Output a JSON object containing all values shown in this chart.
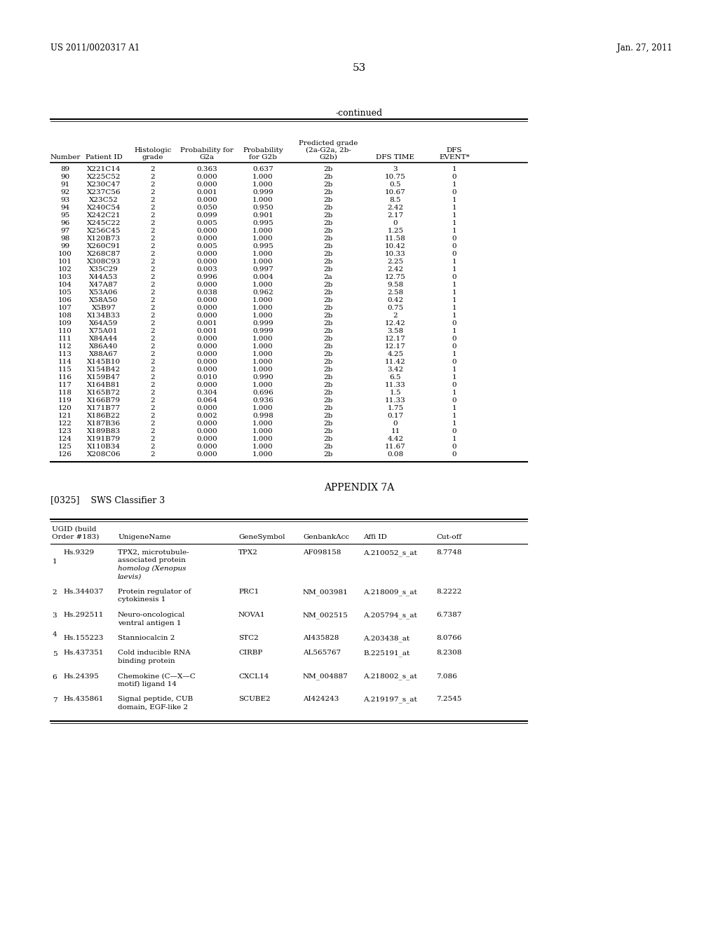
{
  "page_left_text": "US 2011/0020317 A1",
  "page_right_text": "Jan. 27, 2011",
  "page_number": "53",
  "continued_label": "-continued",
  "table1_data": [
    [
      "89",
      "X221C14",
      "2",
      "0.363",
      "0.637",
      "2b",
      "3",
      "1"
    ],
    [
      "90",
      "X225C52",
      "2",
      "0.000",
      "1.000",
      "2b",
      "10.75",
      "0"
    ],
    [
      "91",
      "X230C47",
      "2",
      "0.000",
      "1.000",
      "2b",
      "0.5",
      "1"
    ],
    [
      "92",
      "X237C56",
      "2",
      "0.001",
      "0.999",
      "2b",
      "10.67",
      "0"
    ],
    [
      "93",
      "X23C52",
      "2",
      "0.000",
      "1.000",
      "2b",
      "8.5",
      "1"
    ],
    [
      "94",
      "X240C54",
      "2",
      "0.050",
      "0.950",
      "2b",
      "2.42",
      "1"
    ],
    [
      "95",
      "X242C21",
      "2",
      "0.099",
      "0.901",
      "2b",
      "2.17",
      "1"
    ],
    [
      "96",
      "X245C22",
      "2",
      "0.005",
      "0.995",
      "2b",
      "0",
      "1"
    ],
    [
      "97",
      "X256C45",
      "2",
      "0.000",
      "1.000",
      "2b",
      "1.25",
      "1"
    ],
    [
      "98",
      "X120B73",
      "2",
      "0.000",
      "1.000",
      "2b",
      "11.58",
      "0"
    ],
    [
      "99",
      "X260C91",
      "2",
      "0.005",
      "0.995",
      "2b",
      "10.42",
      "0"
    ],
    [
      "100",
      "X268C87",
      "2",
      "0.000",
      "1.000",
      "2b",
      "10.33",
      "0"
    ],
    [
      "101",
      "X308C93",
      "2",
      "0.000",
      "1.000",
      "2b",
      "2.25",
      "1"
    ],
    [
      "102",
      "X35C29",
      "2",
      "0.003",
      "0.997",
      "2b",
      "2.42",
      "1"
    ],
    [
      "103",
      "X44A53",
      "2",
      "0.996",
      "0.004",
      "2a",
      "12.75",
      "0"
    ],
    [
      "104",
      "X47A87",
      "2",
      "0.000",
      "1.000",
      "2b",
      "9.58",
      "1"
    ],
    [
      "105",
      "X53A06",
      "2",
      "0.038",
      "0.962",
      "2b",
      "2.58",
      "1"
    ],
    [
      "106",
      "X58A50",
      "2",
      "0.000",
      "1.000",
      "2b",
      "0.42",
      "1"
    ],
    [
      "107",
      "X5B97",
      "2",
      "0.000",
      "1.000",
      "2b",
      "0.75",
      "1"
    ],
    [
      "108",
      "X134B33",
      "2",
      "0.000",
      "1.000",
      "2b",
      "2",
      "1"
    ],
    [
      "109",
      "X64A59",
      "2",
      "0.001",
      "0.999",
      "2b",
      "12.42",
      "0"
    ],
    [
      "110",
      "X75A01",
      "2",
      "0.001",
      "0.999",
      "2b",
      "3.58",
      "1"
    ],
    [
      "111",
      "X84A44",
      "2",
      "0.000",
      "1.000",
      "2b",
      "12.17",
      "0"
    ],
    [
      "112",
      "X86A40",
      "2",
      "0.000",
      "1.000",
      "2b",
      "12.17",
      "0"
    ],
    [
      "113",
      "X88A67",
      "2",
      "0.000",
      "1.000",
      "2b",
      "4.25",
      "1"
    ],
    [
      "114",
      "X145B10",
      "2",
      "0.000",
      "1.000",
      "2b",
      "11.42",
      "0"
    ],
    [
      "115",
      "X154B42",
      "2",
      "0.000",
      "1.000",
      "2b",
      "3.42",
      "1"
    ],
    [
      "116",
      "X159B47",
      "2",
      "0.010",
      "0.990",
      "2b",
      "6.5",
      "1"
    ],
    [
      "117",
      "X164B81",
      "2",
      "0.000",
      "1.000",
      "2b",
      "11.33",
      "0"
    ],
    [
      "118",
      "X165B72",
      "2",
      "0.304",
      "0.696",
      "2b",
      "1.5",
      "1"
    ],
    [
      "119",
      "X166B79",
      "2",
      "0.064",
      "0.936",
      "2b",
      "11.33",
      "0"
    ],
    [
      "120",
      "X171B77",
      "2",
      "0.000",
      "1.000",
      "2b",
      "1.75",
      "1"
    ],
    [
      "121",
      "X186B22",
      "2",
      "0.002",
      "0.998",
      "2b",
      "0.17",
      "1"
    ],
    [
      "122",
      "X187B36",
      "2",
      "0.000",
      "1.000",
      "2b",
      "0",
      "1"
    ],
    [
      "123",
      "X189B83",
      "2",
      "0.000",
      "1.000",
      "2b",
      "11",
      "0"
    ],
    [
      "124",
      "X191B79",
      "2",
      "0.000",
      "1.000",
      "2b",
      "4.42",
      "1"
    ],
    [
      "125",
      "X110B34",
      "2",
      "0.000",
      "1.000",
      "2b",
      "11.67",
      "0"
    ],
    [
      "126",
      "X208C06",
      "2",
      "0.000",
      "1.000",
      "2b",
      "0.08",
      "0"
    ]
  ],
  "appendix_title": "APPENDIX 7A",
  "appendix_para": "[0325]    SWS Classifier 3",
  "table2_data": [
    {
      "order": "1",
      "ugid": "Hs.9329",
      "name_lines": [
        "TPX2, microtubule-",
        "associated protein",
        "homolog (Xenopus",
        "laevis)"
      ],
      "name_italic": [
        false,
        false,
        true,
        true
      ],
      "symbol": "TPX2",
      "genbank": "AF098158",
      "affi": "A.210052_s_at",
      "cutoff": "8.7748"
    },
    {
      "order": "2",
      "ugid": "Hs.344037",
      "name_lines": [
        "Protein regulator of",
        "cytokinesis 1"
      ],
      "name_italic": [
        false,
        false
      ],
      "symbol": "PRC1",
      "genbank": "NM_003981",
      "affi": "A.218009_s_at",
      "cutoff": "8.2222"
    },
    {
      "order": "3",
      "ugid": "Hs.292511",
      "name_lines": [
        "Neuro-oncological",
        "ventral antigen 1"
      ],
      "name_italic": [
        false,
        false
      ],
      "symbol": "NOVA1",
      "genbank": "NM_002515",
      "affi": "A.205794_s_at",
      "cutoff": "6.7387"
    },
    {
      "order": "4",
      "ugid": "Hs.155223",
      "name_lines": [
        "Stanniocalcin 2"
      ],
      "name_italic": [
        false
      ],
      "symbol": "STC2",
      "genbank": "AI435828",
      "affi": "A.203438_at",
      "cutoff": "8.0766"
    },
    {
      "order": "5",
      "ugid": "Hs.437351",
      "name_lines": [
        "Cold inducible RNA",
        "binding protein"
      ],
      "name_italic": [
        false,
        false
      ],
      "symbol": "CIRBP",
      "genbank": "AL565767",
      "affi": "B.225191_at",
      "cutoff": "8.2308"
    },
    {
      "order": "6",
      "ugid": "Hs.24395",
      "name_lines": [
        "Chemokine (C—X—C",
        "motif) ligand 14"
      ],
      "name_italic": [
        false,
        false
      ],
      "symbol": "CXCL14",
      "genbank": "NM_004887",
      "affi": "A.218002_s_at",
      "cutoff": "7.086"
    },
    {
      "order": "7",
      "ugid": "Hs.435861",
      "name_lines": [
        "Signal peptide, CUB",
        "domain, EGF-like 2"
      ],
      "name_italic": [
        false,
        false
      ],
      "symbol": "SCUBE2",
      "genbank": "AI424243",
      "affi": "A.219197_s_at",
      "cutoff": "7.2545"
    }
  ]
}
